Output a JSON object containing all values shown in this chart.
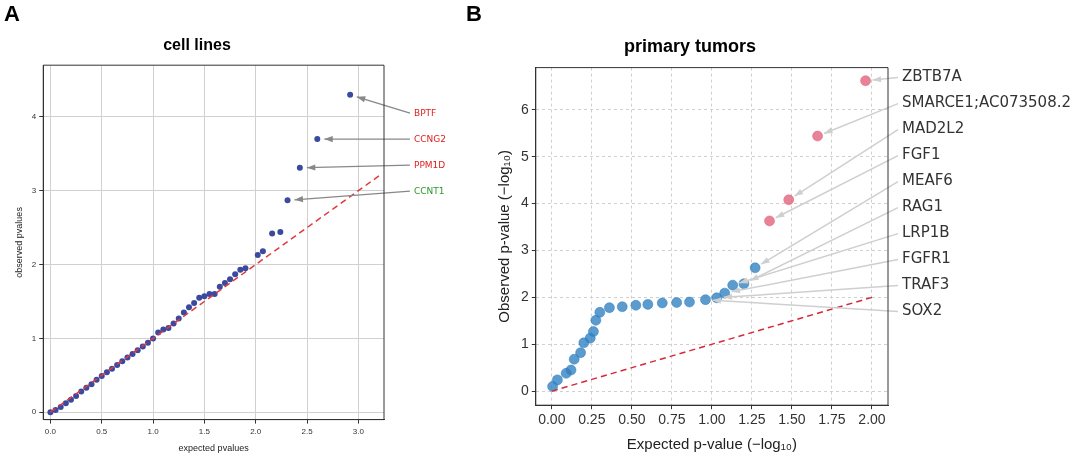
{
  "chart_data": [
    {
      "type": "scatter",
      "title": "cell lines",
      "xlabel": "expected pvalues",
      "ylabel": "observed pvalues",
      "xlim": [
        -0.07,
        3.25
      ],
      "ylim": [
        -0.1,
        4.7
      ],
      "xticks": [
        {
          "value": 0,
          "label": "0.0"
        },
        {
          "value": 0.5,
          "label": "0.5"
        },
        {
          "value": 1,
          "label": "1.0"
        },
        {
          "value": 1.5,
          "label": "1.5"
        },
        {
          "value": 2,
          "label": "2.0"
        },
        {
          "value": 2.5,
          "label": "2.5"
        },
        {
          "value": 3,
          "label": "3.0"
        }
      ],
      "yticks": [
        0,
        1,
        2,
        3,
        4
      ],
      "grid": true,
      "legend": false,
      "marker": "circle",
      "series": [
        {
          "type": "scatter",
          "color": "#3b4a9e",
          "x": [
            0,
            0.05,
            0.1,
            0.15,
            0.2,
            0.25,
            0.3,
            0.35,
            0.4,
            0.45,
            0.5,
            0.55,
            0.6,
            0.65,
            0.7,
            0.75,
            0.8,
            0.85,
            0.9,
            0.95,
            1.0,
            1.05,
            1.1,
            1.15,
            1.2,
            1.25,
            1.3,
            1.35,
            1.4,
            1.45,
            1.5,
            1.55,
            1.6,
            1.65,
            1.7,
            1.75,
            1.8,
            1.85,
            1.9,
            2.02,
            2.07,
            2.16,
            2.24,
            2.31,
            2.43,
            2.6,
            2.92
          ],
          "values": [
            0,
            0.03,
            0.07,
            0.12,
            0.17,
            0.22,
            0.28,
            0.33,
            0.38,
            0.44,
            0.49,
            0.54,
            0.59,
            0.64,
            0.69,
            0.74,
            0.79,
            0.84,
            0.89,
            0.94,
            1.0,
            1.08,
            1.12,
            1.14,
            1.2,
            1.27,
            1.35,
            1.42,
            1.48,
            1.55,
            1.57,
            1.6,
            1.6,
            1.7,
            1.75,
            1.8,
            1.87,
            1.93,
            1.95,
            2.13,
            2.18,
            2.42,
            2.44,
            2.87,
            3.31,
            3.7,
            4.3
          ]
        },
        {
          "type": "line",
          "color": "#e03a3a",
          "line_style": "dashed",
          "marker": "none",
          "x": [
            0,
            3.2
          ],
          "values": [
            0,
            3.2
          ]
        }
      ],
      "annotations": [
        "A",
        {
          "text": "BPTF",
          "x": 2.92,
          "y": 4.3
        },
        {
          "text": "CCNG2",
          "x": 2.6,
          "y": 3.7
        },
        {
          "text": "PPM1D",
          "x": 2.43,
          "y": 3.31
        },
        {
          "text": "CCNT1",
          "x": 2.31,
          "y": 2.87
        }
      ]
    },
    {
      "type": "scatter",
      "title": "primary tumors",
      "xlabel": "Expected p-value (−log₁₀)",
      "ylabel": "Observed p-value (−log₁₀)",
      "xlim": [
        -0.1,
        2.1
      ],
      "ylim": [
        -0.3,
        6.9
      ],
      "xticks": [
        {
          "value": 0,
          "label": "0.00"
        },
        {
          "value": 0.25,
          "label": "0.25"
        },
        {
          "value": 0.5,
          "label": "0.50"
        },
        {
          "value": 0.75,
          "label": "0.75"
        },
        {
          "value": 1,
          "label": "1.00"
        },
        {
          "value": 1.25,
          "label": "1.25"
        },
        {
          "value": 1.5,
          "label": "1.50"
        },
        {
          "value": 1.75,
          "label": "1.75"
        },
        {
          "value": 2,
          "label": "2.00"
        }
      ],
      "yticks": [
        0,
        1,
        2,
        3,
        4,
        5,
        6
      ],
      "grid": true,
      "legend": false,
      "marker": "circle",
      "series": [
        {
          "type": "scatter",
          "color": "#2f7fc1",
          "x": [
            0.005,
            0.035,
            0.09,
            0.12,
            0.14,
            0.18,
            0.2,
            0.24,
            0.26,
            0.275,
            0.3,
            0.36,
            0.44,
            0.525,
            0.6,
            0.69,
            0.78,
            0.86,
            0.96,
            1.03,
            1.08,
            1.13,
            1.2,
            1.27
          ],
          "values": [
            0.1,
            0.24,
            0.38,
            0.45,
            0.68,
            0.82,
            1.03,
            1.13,
            1.27,
            1.51,
            1.68,
            1.78,
            1.8,
            1.83,
            1.85,
            1.88,
            1.89,
            1.9,
            1.95,
            1.99,
            2.09,
            2.26,
            2.29,
            2.63
          ]
        },
        {
          "type": "scatter",
          "color": "#e0607a",
          "x": [
            1.36,
            1.48,
            1.66,
            1.96
          ],
          "values": [
            3.63,
            4.08,
            5.44,
            6.62
          ]
        },
        {
          "type": "line",
          "color": "#d62739",
          "line_style": "dashed",
          "marker": "none",
          "x": [
            0,
            2
          ],
          "values": [
            0,
            2
          ]
        }
      ],
      "annotations": [
        "B",
        {
          "text": "ZBTB7A",
          "x": 1.96,
          "y": 6.62
        },
        {
          "text": "SMARCE1;AC073508.2",
          "x": 1.66,
          "y": 5.44
        },
        {
          "text": "MAD2L2",
          "x": 1.48,
          "y": 4.08
        },
        {
          "text": "FGF1",
          "x": 1.36,
          "y": 3.63
        },
        {
          "text": "MEAF6",
          "x": 1.27,
          "y": 2.63
        },
        {
          "text": "RAG1",
          "x": 1.2,
          "y": 2.29
        },
        {
          "text": "LRP1B",
          "x": 1.13,
          "y": 2.26
        },
        {
          "text": "FGFR1",
          "x": 1.08,
          "y": 2.09
        },
        {
          "text": "TRAF3",
          "x": 1.03,
          "y": 1.99
        },
        {
          "text": "SOX2",
          "x": 0.96,
          "y": 1.95
        }
      ]
    }
  ]
}
